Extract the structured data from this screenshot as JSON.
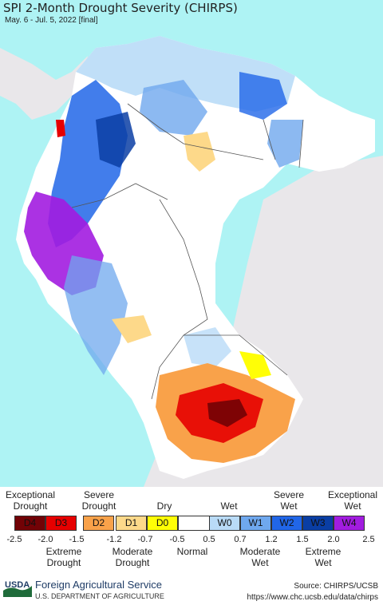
{
  "map": {
    "title": "SPI 2-Month Drought Severity (CHIRPS)",
    "subtitle": "May. 6 - Jul. 5, 2022 [final]",
    "colors": {
      "ocean": "#aef3f4",
      "outside_land": "#e9e7ea",
      "boundary": "#555555"
    }
  },
  "legend": {
    "top_labels": [
      "Exceptional\nDrought",
      "Severe\nDrought",
      "Dry",
      "Wet",
      "Severe\nWet",
      "Exceptional\nWet"
    ],
    "classes": [
      {
        "code": "D4",
        "color": "#720206"
      },
      {
        "code": "D3",
        "color": "#e60000"
      },
      {
        "code": "D2",
        "color": "#f9a24a"
      },
      {
        "code": "D1",
        "color": "#fdd98a"
      },
      {
        "code": "D0",
        "color": "#fffe06"
      },
      {
        "code": "",
        "color": "#ffffff"
      },
      {
        "code": "W0",
        "color": "#b9dbf7"
      },
      {
        "code": "W1",
        "color": "#6fa8ee"
      },
      {
        "code": "W2",
        "color": "#2166e8"
      },
      {
        "code": "W3",
        "color": "#0a3ea4"
      },
      {
        "code": "W4",
        "color": "#a21ce0"
      }
    ],
    "ticks": [
      "-2.5",
      "-2.0",
      "-1.5",
      "-1.2",
      "-0.7",
      "-0.5",
      "0.5",
      "0.7",
      "1.2",
      "1.5",
      "2.0",
      "2.5"
    ],
    "bottom_labels": [
      "Extreme\nDrought",
      "Moderate\nDrought",
      "Normal",
      "Moderate\nWet",
      "Extreme\nWet"
    ]
  },
  "footer": {
    "logo_text": "USDA",
    "agency": "Foreign Agricultural Service",
    "department": "U.S. DEPARTMENT OF AGRICULTURE",
    "source": "Source: CHIRPS/UCSB",
    "url": "https://www.chc.ucsb.edu/data/chirps"
  }
}
